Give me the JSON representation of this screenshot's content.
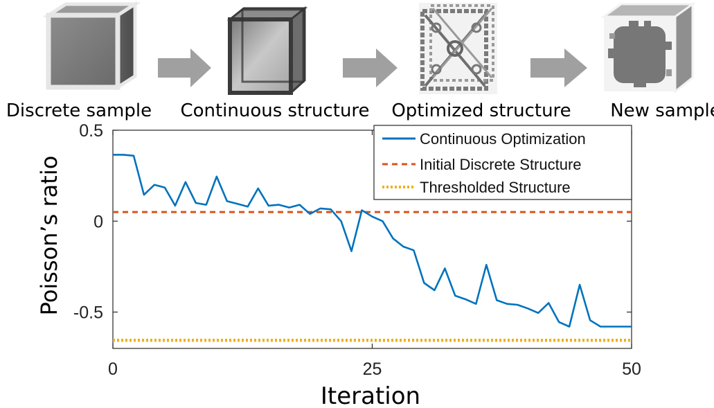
{
  "stages": [
    {
      "label": "Discrete sample",
      "icon": "solid-gray-cube-icon"
    },
    {
      "label": "Continuous structure",
      "icon": "transparent-frame-cube-icon"
    },
    {
      "label": "Optimized structure",
      "icon": "lattice-cube-icon"
    },
    {
      "label": "New sample",
      "icon": "patterned-cube-icon"
    }
  ],
  "arrow_color": "#a0a0a0",
  "chart_data": {
    "type": "line",
    "title": "",
    "xlabel": "Iteration",
    "ylabel": "Poisson’s ratio",
    "xlim": [
      0,
      50
    ],
    "ylim": [
      -0.7,
      0.5
    ],
    "xticks": [
      0,
      25,
      50
    ],
    "xtick_labels": [
      "0",
      "25",
      "50"
    ],
    "yticks": [
      0.5,
      0,
      -0.5
    ],
    "ytick_labels": [
      "0.5",
      "0",
      "-0.5"
    ],
    "grid": false,
    "legend_position": "top-right",
    "series": [
      {
        "name": "Continuous Optimization",
        "color": "#0072BD",
        "style": "solid",
        "x": [
          0,
          1,
          2,
          3,
          4,
          5,
          6,
          7,
          8,
          9,
          10,
          11,
          12,
          13,
          14,
          15,
          16,
          17,
          18,
          19,
          20,
          21,
          22,
          23,
          24,
          25,
          26,
          27,
          28,
          29,
          30,
          31,
          32,
          33,
          34,
          35,
          36,
          37,
          38,
          39,
          40,
          41,
          42,
          43,
          44,
          45,
          46,
          47,
          48,
          49,
          50
        ],
        "y": [
          0.365,
          0.365,
          0.36,
          0.145,
          0.2,
          0.185,
          0.085,
          0.215,
          0.1,
          0.09,
          0.245,
          0.11,
          0.095,
          0.08,
          0.18,
          0.085,
          0.09,
          0.075,
          0.09,
          0.04,
          0.07,
          0.065,
          0.0,
          -0.165,
          0.06,
          0.025,
          0.0,
          -0.095,
          -0.14,
          -0.16,
          -0.34,
          -0.38,
          -0.26,
          -0.41,
          -0.43,
          -0.455,
          -0.24,
          -0.435,
          -0.455,
          -0.46,
          -0.48,
          -0.505,
          -0.45,
          -0.555,
          -0.58,
          -0.35,
          -0.545,
          -0.58,
          -0.58,
          -0.58,
          -0.58
        ]
      },
      {
        "name": "Initial Discrete Structure",
        "color": "#D95319",
        "style": "dashed",
        "x": [
          0,
          50
        ],
        "y": [
          0.05,
          0.05
        ]
      },
      {
        "name": "Thresholded Structure",
        "color": "#EDB120",
        "style": "dotted",
        "x": [
          0,
          50
        ],
        "y": [
          -0.655,
          -0.655
        ]
      }
    ]
  }
}
